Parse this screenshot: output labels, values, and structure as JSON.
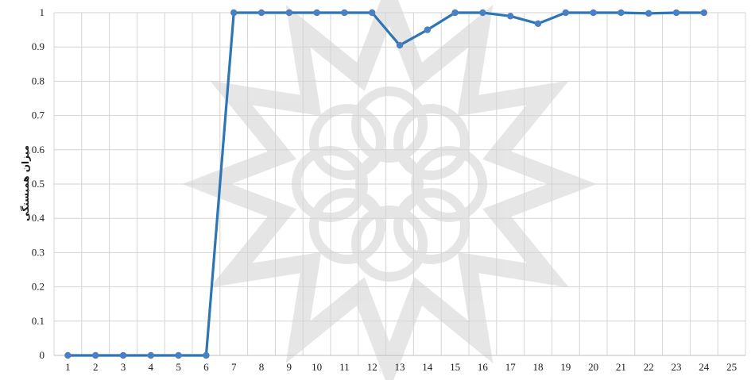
{
  "chart_data": {
    "type": "line",
    "ylabel": "میزان همبستگی",
    "xlabel": "",
    "title": "",
    "x": [
      1,
      2,
      3,
      4,
      5,
      6,
      7,
      8,
      9,
      10,
      11,
      12,
      13,
      14,
      15,
      16,
      17,
      18,
      19,
      20,
      21,
      22,
      23,
      24,
      25
    ],
    "series": [
      {
        "values": [
          0,
          0,
          0,
          0,
          0,
          0,
          1,
          1,
          1,
          1,
          1,
          1,
          0.905,
          0.95,
          1,
          1,
          0.99,
          0.968,
          1,
          1,
          1,
          0.998,
          1,
          1,
          null
        ],
        "color": "#2e75b6"
      }
    ],
    "yticks": [
      "0",
      "0.1",
      "0.2",
      "0.3",
      "0.4",
      "0.5",
      "0.6",
      "0.7",
      "0.8",
      "0.9",
      "1"
    ],
    "ylim": [
      0,
      1
    ],
    "xlim": [
      1,
      25
    ],
    "grid": true,
    "legend": "none",
    "marker_color": "#4a7fc1",
    "watermark": "decorative-rosette-icon"
  }
}
